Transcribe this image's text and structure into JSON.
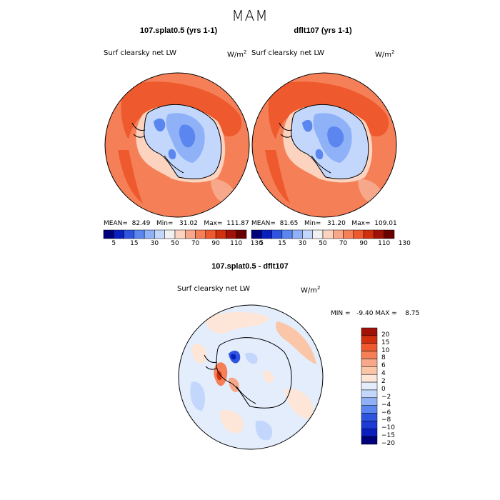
{
  "season": "MAM",
  "panels": [
    {
      "title": "107.splat0.5 (yrs 1-1)",
      "variable": "Surf clearsky net LW",
      "units": "W/m",
      "units_sup": "2",
      "stats": "MEAN=  82.49   Min=   31.02   Max=  111.87"
    },
    {
      "title": "dflt107 (yrs 1-1)",
      "variable": "Surf clearsky net LW",
      "units": "W/m",
      "units_sup": "2",
      "stats": "MEAN=  81.65   Min=   31.20   Max=  109.01"
    }
  ],
  "diff_panel": {
    "title": "107.splat0.5 - dflt107",
    "variable": "Surf clearsky net LW",
    "units": "W/m",
    "units_sup": "2",
    "stats": "MIN =   -9.40 MAX =    8.75"
  },
  "colorbar_top": {
    "colors": [
      "#00007a",
      "#0a1fbf",
      "#2f55e0",
      "#5b86f0",
      "#8fb1f7",
      "#c3d6fb",
      "#f1f1f1",
      "#fbd3bf",
      "#f8a88a",
      "#f58058",
      "#ee5a2d",
      "#d0300d",
      "#a01207",
      "#680000"
    ],
    "tick_labels": [
      "5",
      "15",
      "30",
      "50",
      "70",
      "90",
      "110",
      "130"
    ]
  },
  "colorbar_diff": {
    "colors": [
      "#00007a",
      "#0a1fbf",
      "#1c3bd6",
      "#2f55e0",
      "#5b86f0",
      "#8fb1f7",
      "#c3d6fb",
      "#e3edfc",
      "#fde6d8",
      "#fbc6a8",
      "#f8a88a",
      "#f58058",
      "#ee5a2d",
      "#d0300d",
      "#a01207"
    ],
    "tick_labels": [
      "20",
      "15",
      "10",
      "8",
      "6",
      "4",
      "2",
      "0",
      "−2",
      "−4",
      "−6",
      "−8",
      "−10",
      "−15",
      "−20"
    ]
  }
}
